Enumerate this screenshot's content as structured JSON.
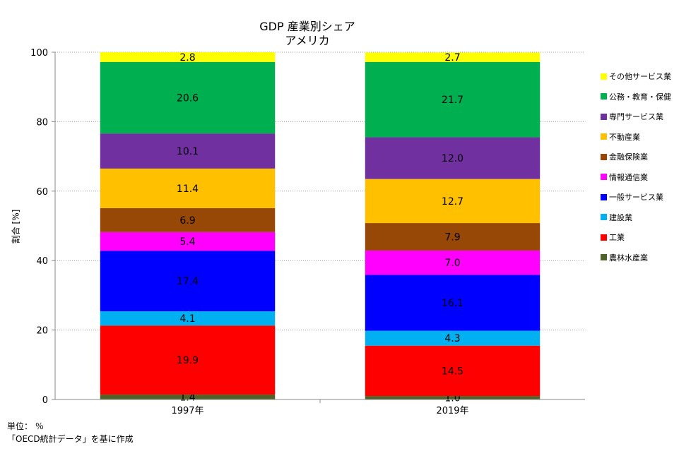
{
  "chart_data": {
    "type": "bar",
    "stacked": true,
    "title": "GDP 産業別シェア",
    "subtitle": "アメリカ",
    "ylabel": "割合 [%]",
    "xlabel": "",
    "ylim": [
      0,
      100
    ],
    "yticks": [
      0,
      20,
      40,
      60,
      80,
      100
    ],
    "grid": "horizontal dotted",
    "legend_position": "right",
    "categories": [
      "1997年",
      "2019年"
    ],
    "series": [
      {
        "name": "農林水産業",
        "color": "#4F6228",
        "values": [
          1.4,
          1.0
        ]
      },
      {
        "name": "工業",
        "color": "#FF0000",
        "values": [
          19.9,
          14.5
        ]
      },
      {
        "name": "建設業",
        "color": "#00B0F0",
        "values": [
          4.1,
          4.3
        ]
      },
      {
        "name": "一般サービス業",
        "color": "#0000FF",
        "values": [
          17.4,
          16.1
        ]
      },
      {
        "name": "情報通信業",
        "color": "#FF00FF",
        "values": [
          5.4,
          7.0
        ]
      },
      {
        "name": "金融保険業",
        "color": "#974706",
        "values": [
          6.9,
          7.9
        ]
      },
      {
        "name": "不動産業",
        "color": "#FFC000",
        "values": [
          11.4,
          12.7
        ]
      },
      {
        "name": "専門サービス業",
        "color": "#7030A0",
        "values": [
          10.1,
          12.0
        ]
      },
      {
        "name": "公務・教育・保健",
        "color": "#00B050",
        "values": [
          20.6,
          21.7
        ]
      },
      {
        "name": "その他サービス業",
        "color": "#FFFF00",
        "values": [
          2.8,
          2.7
        ]
      }
    ]
  },
  "notes": {
    "unit": "単位： ％",
    "source": "「OECD統計データ」を基に作成"
  }
}
